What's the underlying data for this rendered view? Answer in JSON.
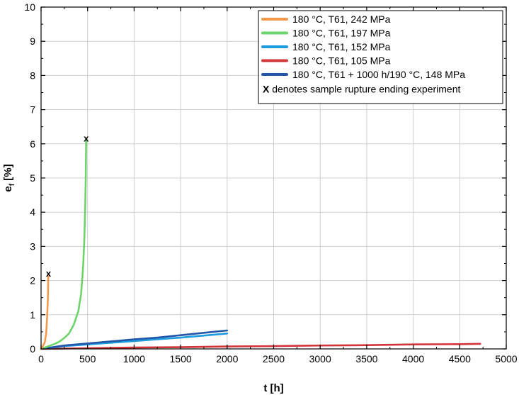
{
  "chart_data": {
    "type": "line",
    "xlabel": "t [h]",
    "ylabel_main": "e",
    "ylabel_sub": "f",
    "ylabel_unit": " [%]",
    "xlim": [
      0,
      5000
    ],
    "ylim": [
      0,
      10
    ],
    "xticks": [
      0,
      500,
      1000,
      1500,
      2000,
      2500,
      3000,
      3500,
      4000,
      4500,
      5000
    ],
    "yticks": [
      0,
      1,
      2,
      3,
      4,
      5,
      6,
      7,
      8,
      9,
      10
    ],
    "grid": true,
    "legend_position": "top-right",
    "series": [
      {
        "name": "180 °C, T61, 242 MPa",
        "color": "#f59a4c",
        "x": [
          0,
          20,
          40,
          55,
          65,
          72,
          76,
          78
        ],
        "y": [
          0.0,
          0.08,
          0.2,
          0.45,
          0.9,
          1.4,
          1.9,
          2.15
        ]
      },
      {
        "name": "180 °C, T61, 197 MPa",
        "color": "#6cd46a",
        "x": [
          0,
          50,
          100,
          150,
          200,
          250,
          300,
          350,
          400,
          430,
          450,
          465,
          475,
          480,
          485
        ],
        "y": [
          0.0,
          0.05,
          0.1,
          0.15,
          0.22,
          0.32,
          0.45,
          0.7,
          1.1,
          1.6,
          2.3,
          3.2,
          4.2,
          5.0,
          6.1
        ]
      },
      {
        "name": "180 °C, T61, 152 MPa",
        "color": "#1f9be0",
        "x": [
          0,
          250,
          500,
          750,
          1000,
          1250,
          1500,
          1750,
          2000
        ],
        "y": [
          0.0,
          0.08,
          0.13,
          0.18,
          0.23,
          0.28,
          0.33,
          0.39,
          0.45
        ]
      },
      {
        "name": "180 °C, T61, 105 MPa",
        "color": "#d3343a",
        "x": [
          0,
          500,
          1000,
          1500,
          2000,
          2500,
          3000,
          3500,
          4000,
          4500,
          4720
        ],
        "y": [
          0.0,
          0.02,
          0.04,
          0.05,
          0.07,
          0.08,
          0.1,
          0.11,
          0.13,
          0.14,
          0.15
        ]
      },
      {
        "name": "180 °C, T61 + 1000 h/190 °C, 148 MPa",
        "color": "#2256a8",
        "x": [
          0,
          250,
          500,
          750,
          1000,
          1250,
          1500,
          1750,
          2000
        ],
        "y": [
          0.0,
          0.1,
          0.16,
          0.22,
          0.28,
          0.33,
          0.4,
          0.47,
          0.54
        ]
      }
    ],
    "annotations": [
      {
        "text": "x",
        "x": 80,
        "y": 2.2
      },
      {
        "text": "x",
        "x": 485,
        "y": 6.15
      }
    ],
    "legend_note_bold": "X",
    "legend_note": " denotes sample rupture ending experiment"
  }
}
